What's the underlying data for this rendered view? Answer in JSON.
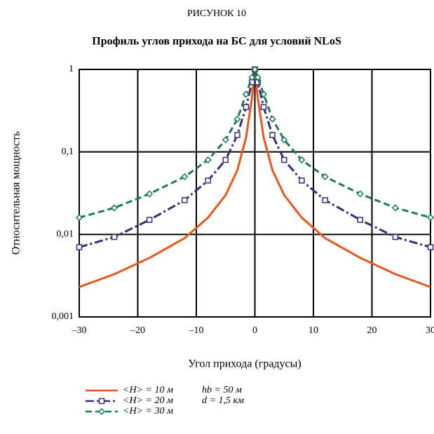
{
  "chart_data": {
    "type": "line",
    "figure_label": "РИСУНОК 10",
    "title": "Профиль углов прихода на БС для условий NLoS",
    "x_label": "Угол прихода (градусы)",
    "y_label": "Относительная мощность",
    "x": [
      -30,
      -24,
      -18,
      -12,
      -8,
      -5,
      -3,
      -1.5,
      -0.5,
      0,
      0.5,
      1.5,
      3,
      5,
      8,
      12,
      18,
      24,
      30
    ],
    "series": [
      {
        "name": "<H> = 10 м",
        "color": "#e8581c",
        "dash": "solid",
        "marker": "none",
        "values": [
          0.0023,
          0.0033,
          0.0052,
          0.009,
          0.016,
          0.03,
          0.06,
          0.15,
          0.45,
          1,
          0.45,
          0.15,
          0.06,
          0.03,
          0.016,
          0.009,
          0.0052,
          0.0033,
          0.0023
        ]
      },
      {
        "name": "<H> = 20 м",
        "color": "#3b2a7a",
        "dash": "dashdot",
        "marker": "square",
        "values": [
          0.007,
          0.0093,
          0.015,
          0.026,
          0.045,
          0.08,
          0.16,
          0.35,
          0.7,
          1,
          0.7,
          0.35,
          0.16,
          0.08,
          0.045,
          0.026,
          0.015,
          0.0093,
          0.007
        ]
      },
      {
        "name": "<H> = 30 м",
        "color": "#1a7a5a",
        "dash": "dashed",
        "marker": "diamond",
        "values": [
          0.016,
          0.021,
          0.031,
          0.05,
          0.08,
          0.14,
          0.25,
          0.5,
          0.8,
          1,
          0.8,
          0.5,
          0.25,
          0.14,
          0.08,
          0.05,
          0.031,
          0.021,
          0.016
        ]
      }
    ],
    "legend_notes": [
      "hb = 50 м",
      "d = 1,5 км"
    ],
    "xlim": [
      -30,
      30
    ],
    "xticks": [
      {
        "value": -30,
        "label": "–30"
      },
      {
        "value": -20,
        "label": "–20"
      },
      {
        "value": -10,
        "label": "–10"
      },
      0,
      10,
      20,
      30
    ],
    "ylim": [
      0.001,
      1
    ],
    "yticks": [
      {
        "value": 0.001,
        "label": "0,001"
      },
      {
        "value": 0.01,
        "label": "0,01"
      },
      {
        "value": 0.1,
        "label": "0,1"
      },
      1
    ],
    "y_scale": "log",
    "grid": true
  }
}
